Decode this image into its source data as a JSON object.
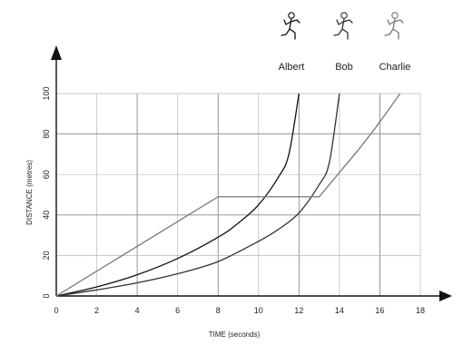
{
  "chart_data": {
    "type": "line",
    "title": "",
    "xlabel": "TIME   (seconds)",
    "ylabel": "DISTANCE   (metres)",
    "xlim": [
      0,
      18
    ],
    "ylim": [
      0,
      100
    ],
    "x_ticks": [
      "0",
      "2",
      "4",
      "6",
      "8",
      "10",
      "12",
      "14",
      "16",
      "18"
    ],
    "y_ticks": [
      "0",
      "20",
      "40",
      "60",
      "80",
      "100"
    ],
    "grid": true,
    "legend_position": "top-right",
    "series": [
      {
        "name": "Albert",
        "color": "#111111",
        "points": [
          [
            0,
            0
          ],
          [
            2,
            4.5
          ],
          [
            4,
            10.5
          ],
          [
            6,
            18.5
          ],
          [
            8,
            29
          ],
          [
            9,
            36
          ],
          [
            10,
            45
          ],
          [
            11,
            59
          ],
          [
            11.5,
            70
          ],
          [
            12,
            100
          ]
        ]
      },
      {
        "name": "Bob",
        "color": "#333333",
        "points": [
          [
            0,
            0
          ],
          [
            2,
            3
          ],
          [
            4,
            6.5
          ],
          [
            6,
            11
          ],
          [
            8,
            17
          ],
          [
            10,
            27
          ],
          [
            11,
            33
          ],
          [
            12,
            41
          ],
          [
            13,
            55
          ],
          [
            13.5,
            66
          ],
          [
            14,
            100
          ]
        ]
      },
      {
        "name": "Charlie",
        "color": "#777777",
        "points": [
          [
            0,
            0
          ],
          [
            2,
            11
          ],
          [
            4,
            22
          ],
          [
            6,
            33
          ],
          [
            8,
            49
          ],
          [
            13,
            49
          ],
          [
            14,
            61
          ],
          [
            15,
            73
          ],
          [
            16,
            86
          ],
          [
            17,
            100
          ]
        ]
      }
    ]
  }
}
